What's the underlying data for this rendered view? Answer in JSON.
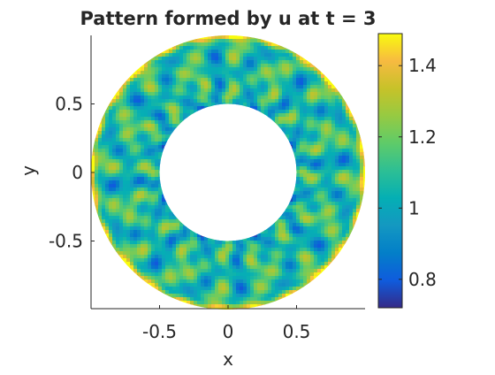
{
  "chart_data": {
    "type": "heatmap",
    "title": "Pattern formed by u at t = 3",
    "xlabel": "x",
    "ylabel": "y",
    "xlim": [
      -1,
      1
    ],
    "ylim": [
      -1,
      1
    ],
    "x_ticks": [
      "-0.5",
      "0",
      "0.5"
    ],
    "x_tick_values": [
      -0.5,
      0,
      0.5
    ],
    "y_ticks": [
      "0.5",
      "0",
      "-0.5"
    ],
    "y_tick_values": [
      0.5,
      0,
      -0.5
    ],
    "colorbar": {
      "range": [
        0.72,
        1.49
      ],
      "ticks": [
        "1.4",
        "1.2",
        "1",
        "0.8"
      ],
      "tick_values": [
        1.4,
        1.2,
        1.0,
        0.8
      ],
      "colormap": "parula"
    },
    "domain": {
      "shape": "annulus",
      "inner_radius": 0.5,
      "outer_radius": 1.0
    },
    "field_pattern": {
      "description_value_base": 1.08,
      "outer_rim_peak": 1.45,
      "inner_rim_min": 0.75,
      "angular_modes": [
        16,
        24
      ],
      "radial_rings": 4
    },
    "grid": false,
    "colors": {
      "axis": "#262626",
      "background": "#ffffff"
    }
  }
}
